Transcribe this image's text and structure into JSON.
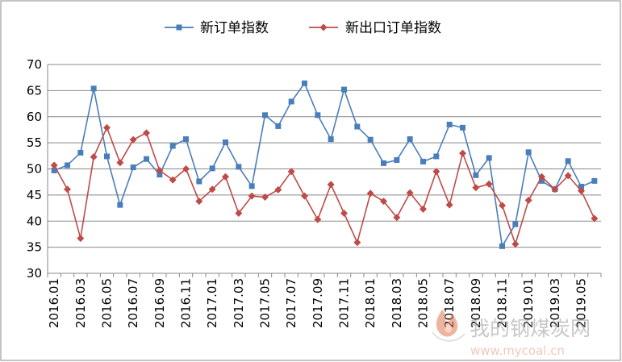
{
  "chart_data": {
    "type": "line",
    "title": "",
    "xlabel": "",
    "ylabel": "",
    "ylim": [
      30,
      70
    ],
    "yticks": [
      30,
      35,
      40,
      45,
      50,
      55,
      60,
      65,
      70
    ],
    "grid": "horizontal",
    "legend_position": "top-center",
    "x": [
      "2016.01",
      "2016.02",
      "2016.03",
      "2016.04",
      "2016.05",
      "2016.06",
      "2016.07",
      "2016.08",
      "2016.09",
      "2016.10",
      "2016.11",
      "2016.12",
      "2017.01",
      "2017.02",
      "2017.03",
      "2017.04",
      "2017.05",
      "2017.06",
      "2017.07",
      "2017.08",
      "2017.09",
      "2017.10",
      "2017.11",
      "2017.12",
      "2018.01",
      "2018.02",
      "2018.03",
      "2018.04",
      "2018.05",
      "2018.06",
      "2018.07",
      "2018.08",
      "2018.09",
      "2018.10",
      "2018.11",
      "2018.12",
      "2019.01",
      "2019.02",
      "2019.03",
      "2019.04",
      "2019.05",
      "2019.06"
    ],
    "x_tick_labels": [
      "2016.01",
      "2016.03",
      "2016.05",
      "2016.07",
      "2016.09",
      "2016.11",
      "2017.01",
      "2017.03",
      "2017.05",
      "2017.07",
      "2017.09",
      "2017.11",
      "2018.01",
      "2018.03",
      "2018.05",
      "2018.07",
      "2018.09",
      "2018.11",
      "2019.01",
      "2019.03",
      "2019.05"
    ],
    "series": [
      {
        "name": "新订单指数",
        "color": "#4A7EBB",
        "marker": "square",
        "values": [
          49.7,
          50.7,
          53.1,
          65.4,
          52.4,
          43.1,
          50.3,
          51.9,
          48.9,
          54.4,
          55.7,
          47.6,
          50.1,
          55.1,
          50.4,
          46.7,
          60.3,
          58.2,
          62.9,
          66.4,
          60.3,
          55.7,
          65.2,
          58.1,
          55.6,
          51.1,
          51.7,
          55.7,
          51.4,
          52.4,
          58.5,
          57.9,
          48.8,
          52.1,
          35.2,
          39.4,
          53.2,
          47.7,
          46.1,
          51.5,
          46.6,
          47.7
        ]
      },
      {
        "name": "新出口订单指数",
        "color": "#BE4B48",
        "marker": "diamond",
        "values": [
          50.7,
          46.1,
          36.7,
          52.3,
          57.9,
          51.2,
          55.6,
          56.9,
          49.7,
          47.9,
          50.0,
          43.8,
          46.1,
          48.5,
          41.5,
          44.8,
          44.6,
          46.0,
          49.5,
          44.8,
          40.3,
          47.0,
          41.5,
          35.9,
          45.3,
          43.8,
          40.7,
          45.4,
          42.3,
          49.5,
          43.1,
          53.0,
          46.4,
          47.1,
          43.0,
          35.6,
          44.0,
          48.5,
          46.1,
          48.7,
          45.8,
          40.5
        ]
      }
    ]
  },
  "watermark": {
    "name": "我的钢煤炭网",
    "url": "www.mycoal.cn"
  }
}
